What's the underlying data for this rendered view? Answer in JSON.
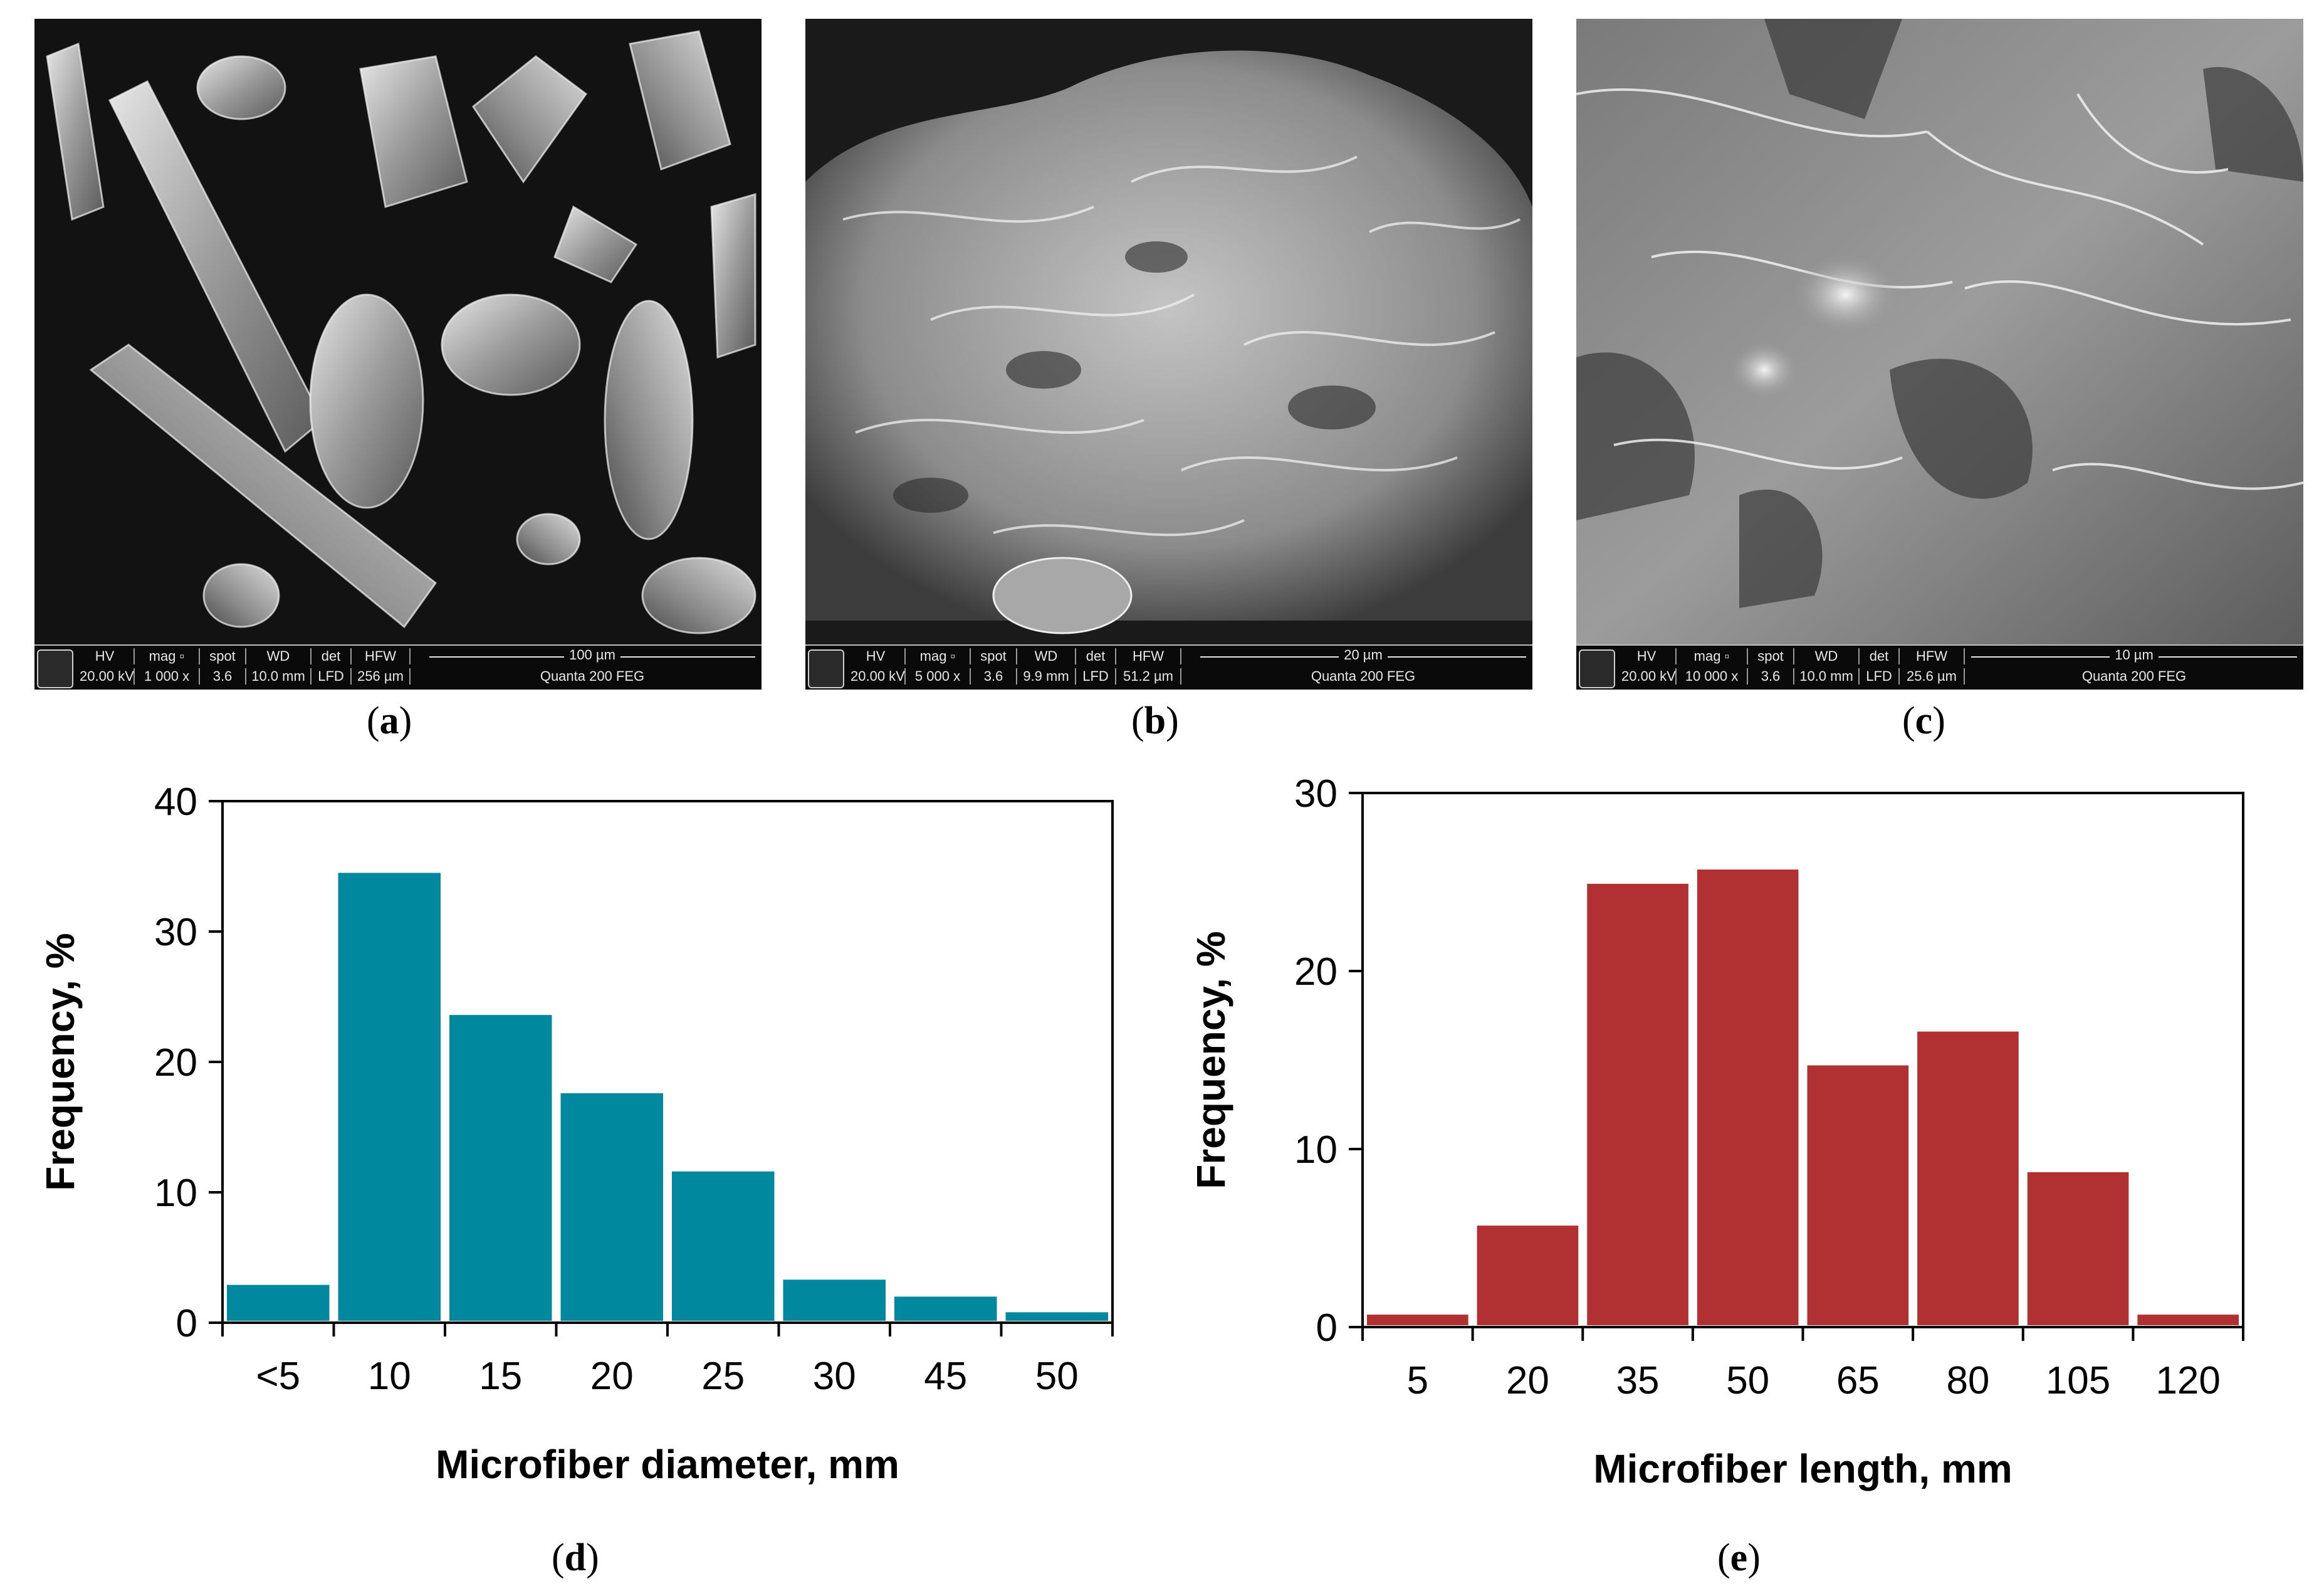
{
  "sem_images": [
    {
      "id": "a",
      "label_open": "(",
      "label_letter": "a",
      "label_close": ")",
      "hdr": {
        "hv": "HV",
        "mag": "mag ▫",
        "spot": "spot",
        "wd": "WD",
        "det": "det",
        "hfw": "HFW"
      },
      "val": {
        "hv": "20.00 kV",
        "mag": "1 000 x",
        "spot": "3.6",
        "wd": "10.0 mm",
        "det": "LFD",
        "hfw": "256 µm"
      },
      "scale": "100 µm",
      "instrument": "Quanta 200 FEG"
    },
    {
      "id": "b",
      "label_open": "(",
      "label_letter": "b",
      "label_close": ")",
      "hdr": {
        "hv": "HV",
        "mag": "mag ▫",
        "spot": "spot",
        "wd": "WD",
        "det": "det",
        "hfw": "HFW"
      },
      "val": {
        "hv": "20.00 kV",
        "mag": "5 000 x",
        "spot": "3.6",
        "wd": "9.9 mm",
        "det": "LFD",
        "hfw": "51.2 µm"
      },
      "scale": "20 µm",
      "instrument": "Quanta 200 FEG"
    },
    {
      "id": "c",
      "label_open": "(",
      "label_letter": "c",
      "label_close": ")",
      "hdr": {
        "hv": "HV",
        "mag": "mag ▫",
        "spot": "spot",
        "wd": "WD",
        "det": "det",
        "hfw": "HFW"
      },
      "val": {
        "hv": "20.00 kV",
        "mag": "10 000 x",
        "spot": "3.6",
        "wd": "10.0 mm",
        "det": "LFD",
        "hfw": "25.6 µm"
      },
      "scale": "10 µm",
      "instrument": "Quanta 200 FEG"
    }
  ],
  "chart_data": [
    {
      "type": "bar",
      "panel": {
        "open": "(",
        "letter": "d",
        "close": ")"
      },
      "categories": [
        "<5",
        "10",
        "15",
        "20",
        "25",
        "30",
        "45",
        "50"
      ],
      "values": [
        2.9,
        34.5,
        23.6,
        17.6,
        11.6,
        3.3,
        2.0,
        0.8
      ],
      "xlabel": "Microfiber diameter, mm",
      "ylabel": "Frequency, %",
      "ylim": [
        0,
        40
      ],
      "yticks": [
        "0",
        "10",
        "20",
        "30",
        "40"
      ],
      "ytick_values": [
        0,
        10,
        20,
        30,
        40
      ],
      "color": "#00889f",
      "grid": false
    },
    {
      "type": "bar",
      "panel": {
        "open": "(",
        "letter": "e",
        "close": ")"
      },
      "categories": [
        "5",
        "20",
        "35",
        "50",
        "65",
        "80",
        "105",
        "120"
      ],
      "values": [
        0.7,
        5.7,
        24.9,
        25.7,
        14.7,
        16.6,
        8.7,
        0.7
      ],
      "xlabel": "Microfiber length, mm",
      "ylabel": "Frequency, %",
      "ylim": [
        0,
        30
      ],
      "yticks": [
        "0",
        "10",
        "20",
        "30"
      ],
      "ytick_values": [
        0,
        10,
        20,
        30
      ],
      "color": "#b13133",
      "grid": false
    }
  ]
}
